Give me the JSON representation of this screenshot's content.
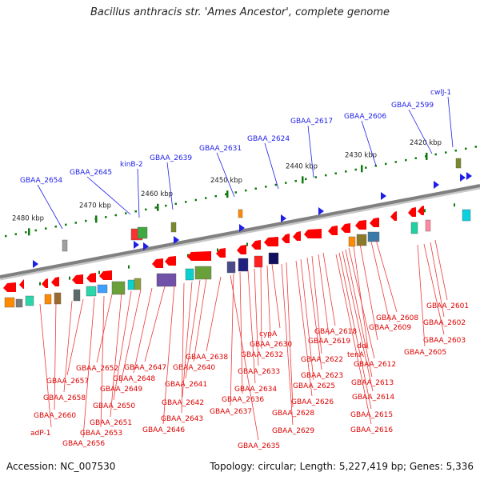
{
  "title": "Bacillus anthracis str. 'Ames Ancestor', complete genome",
  "footer": {
    "accession": "Accession: NC_007530",
    "summary": "Topology: circular; Length: 5,227,419 bp; Genes: 5,336"
  },
  "colors": {
    "backbone": "#808080",
    "gene_forward": "#1e1ee8",
    "gene_reverse": "#ff0000",
    "label_forward": "#1e1ee8",
    "label_reverse": "#dd0000",
    "tick": "#0f7a0f"
  },
  "scale_marks": [
    {
      "kb": 2420,
      "label": "2420 kbp"
    },
    {
      "kb": 2430,
      "label": "2430 kbp"
    },
    {
      "kb": 2440,
      "label": "2440 kbp"
    },
    {
      "kb": 2450,
      "label": "2450 kbp"
    },
    {
      "kb": 2460,
      "label": "2460 kbp"
    },
    {
      "kb": 2470,
      "label": "2470 kbp"
    },
    {
      "kb": 2480,
      "label": "2480 kbp"
    }
  ],
  "forward_gene_labels": [
    "cwlJ-1",
    "GBAA_2599",
    "GBAA_2606",
    "GBAA_2617",
    "GBAA_2624",
    "GBAA_2631",
    "GBAA_2639",
    "kinB-2",
    "GBAA_2645",
    "GBAA_2654"
  ],
  "reverse_gene_labels": [
    "GBAA_2601",
    "GBAA_2602",
    "GBAA_2603",
    "GBAA_2605",
    "GBAA_2608",
    "GBAA_2609",
    "ddl",
    "tenA",
    "GBAA_2612",
    "GBAA_2613",
    "GBAA_2614",
    "GBAA_2615",
    "GBAA_2616",
    "GBAA_2618",
    "GBAA_2619",
    "GBAA_2622",
    "GBAA_2623",
    "GBAA_2625",
    "GBAA_2626",
    "GBAA_2628",
    "GBAA_2629",
    "cypA",
    "GBAA_2630",
    "GBAA_2632",
    "GBAA_2633",
    "GBAA_2634",
    "GBAA_2636",
    "GBAA_2637",
    "GBAA_2635",
    "GBAA_2638",
    "GBAA_2640",
    "GBAA_2641",
    "GBAA_2642",
    "GBAA_2643",
    "GBAA_2646",
    "GBAA_2647",
    "GBAA_2648",
    "GBAA_2649",
    "GBAA_2650",
    "GBAA_2651",
    "GBAA_2652",
    "GBAA_2653",
    "GBAA_2656",
    "GBAA_2657",
    "GBAA_2658",
    "GBAA_2660",
    "adP-1"
  ]
}
